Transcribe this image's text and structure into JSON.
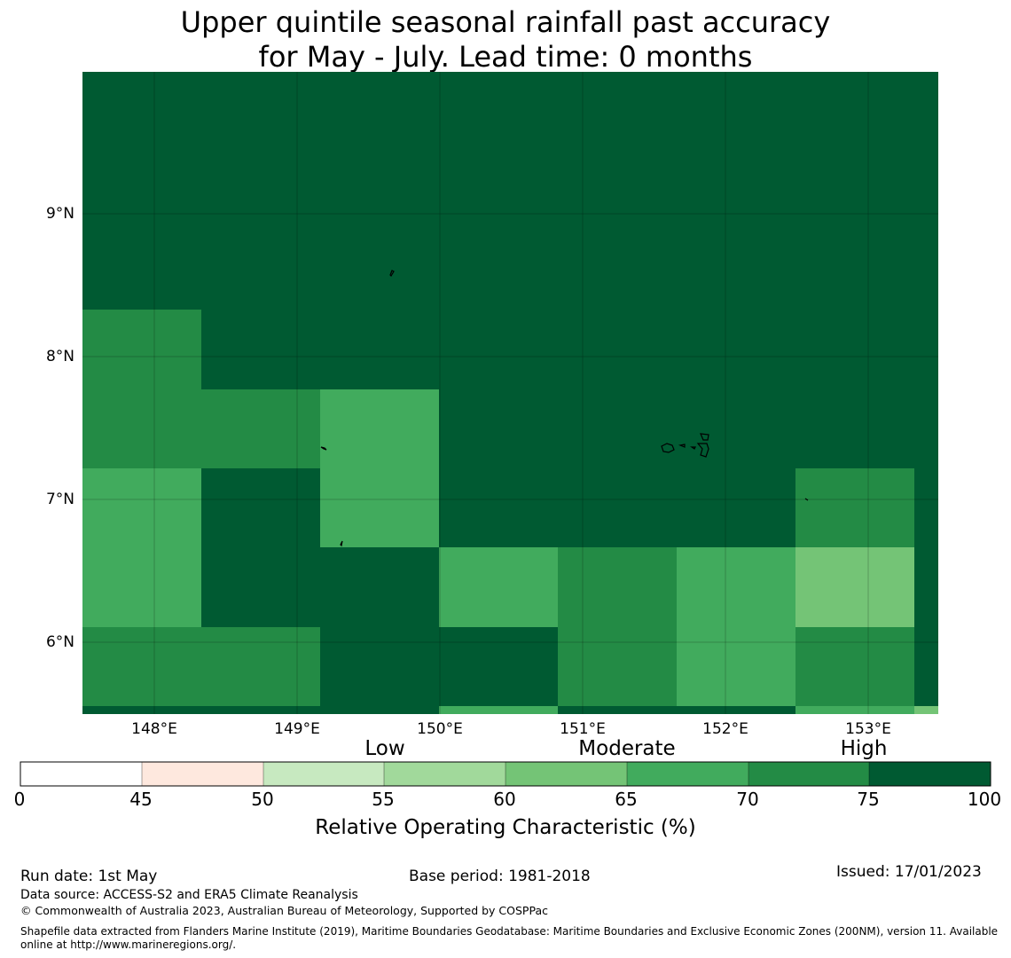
{
  "title": {
    "line1": "Upper quintile seasonal rainfall past accuracy",
    "line2": "for May - July. Lead time: 0 months"
  },
  "map": {
    "lat_labels": [
      "9°N",
      "8°N",
      "7°N",
      "6°N"
    ],
    "lon_labels": [
      "148°E",
      "149°E",
      "150°E",
      "151°E",
      "152°E",
      "153°E"
    ],
    "lat_range": [
      5.5,
      10.0
    ],
    "lon_range": [
      147.5,
      153.5
    ]
  },
  "legend": {
    "categories": [
      "Low",
      "Moderate",
      "High"
    ],
    "ticks": [
      "0",
      "45",
      "50",
      "55",
      "60",
      "65",
      "70",
      "75",
      "100"
    ],
    "colors": [
      "#ffffff",
      "#fee8de",
      "#c7e9c0",
      "#a1d99b",
      "#74c476",
      "#41ab5d",
      "#238b45",
      "#005a32"
    ],
    "title": "Relative Operating Characteristic (%)"
  },
  "footer": {
    "run_date": "Run date: 1st May",
    "base_period": "Base period: 1981-2018",
    "issued": "Issued: 17/01/2023",
    "data_source": "Data source: ACCESS-S2 and ERA5 Climate Reanalysis",
    "copyright": "© Commonwealth of Australia 2023, Australian Bureau of Meteorology, Supported by COSPPac",
    "shapefile": "Shapefile data extracted from Flanders Marine Institute (2019), Maritime Boundaries Geodatabase: Maritime Boundaries and Exclusive Economic Zones (200NM), version 11. Available online at http://www.marineregions.org/."
  }
}
